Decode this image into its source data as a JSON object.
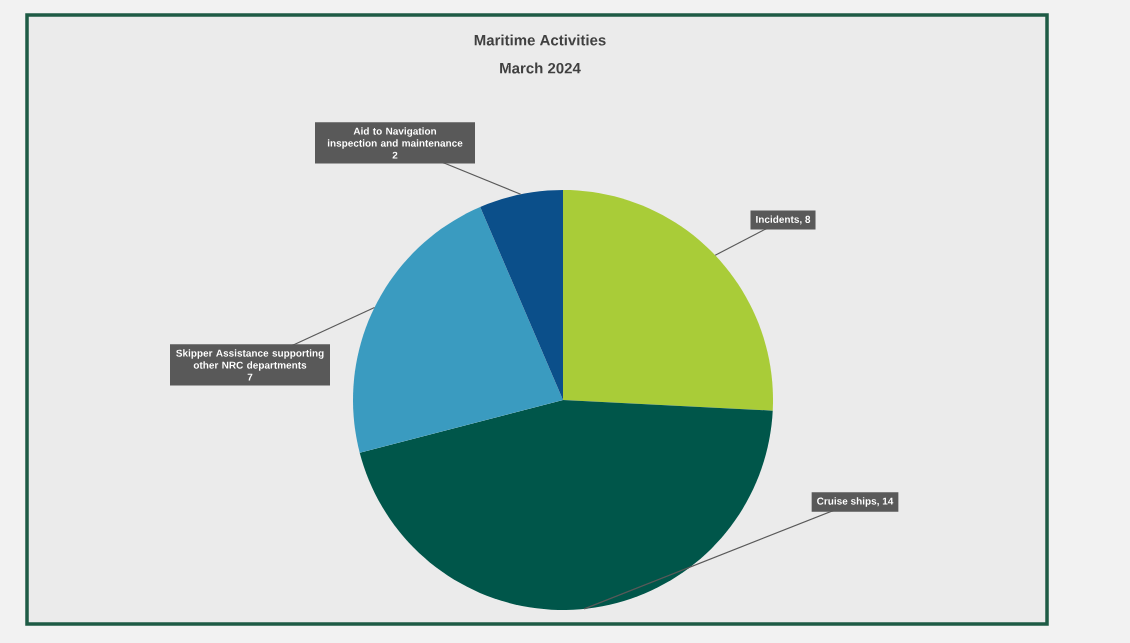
{
  "chart_data": {
    "type": "pie",
    "title": "Maritime Activities",
    "subtitle": "March 2024",
    "categories": [
      "Incidents",
      "Cruise ships",
      "Skipper Assistance supporting other NRC departments",
      "Aid to Navigation inspection and maintenance"
    ],
    "values": [
      8,
      14,
      7,
      2
    ],
    "colors": [
      "#a9cc38",
      "#00564a",
      "#3a9bc0",
      "#0b4f8a"
    ],
    "value_labels": [
      ", 8",
      ", 14",
      "7",
      "2"
    ]
  }
}
